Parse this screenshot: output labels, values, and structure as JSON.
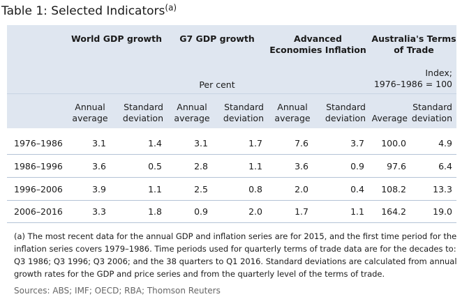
{
  "title": "Table 1: Selected Indicators",
  "title_note": "(a)",
  "groups": [
    {
      "label": "World GDP growth"
    },
    {
      "label": "G7 GDP growth"
    },
    {
      "label": "Advanced\nEconomies Inflation"
    },
    {
      "label": "Australia's Terms\nof Trade"
    }
  ],
  "units": {
    "per_cent": "Per cent",
    "index": "Index;\n1976–1986 = 100"
  },
  "subheaders": [
    "Annual\naverage",
    "Standard\ndeviation",
    "Annual\naverage",
    "Standard\ndeviation",
    "Annual\naverage",
    "Standard\ndeviation",
    "Average",
    "Standard\ndeviation"
  ],
  "rows": [
    {
      "period": "1976–1986",
      "values": [
        "3.1",
        "1.4",
        "3.1",
        "1.7",
        "7.6",
        "3.7",
        "100.0",
        "4.9"
      ]
    },
    {
      "period": "1986–1996",
      "values": [
        "3.6",
        "0.5",
        "2.8",
        "1.1",
        "3.6",
        "0.9",
        "97.6",
        "6.4"
      ]
    },
    {
      "period": "1996–2006",
      "values": [
        "3.9",
        "1.1",
        "2.5",
        "0.8",
        "2.0",
        "0.4",
        "108.2",
        "13.3"
      ]
    },
    {
      "period": "2006–2016",
      "values": [
        "3.3",
        "1.8",
        "0.9",
        "2.0",
        "1.7",
        "1.1",
        "164.2",
        "19.0"
      ]
    }
  ],
  "footnote": "(a) The most recent data for the annual GDP and inflation series are for 2015, and the first time period for the inflation series covers 1979–1986. Time periods used for quarterly terms of trade data are for the decades to: Q3 1986; Q3 1996; Q3 2006; and the 38 quarters to Q1 2016. Standard deviations are calculated from annual growth rates for the GDP and price series and from the quarterly level of the terms of trade.",
  "sources": "Sources: ABS; IMF; OECD; RBA; Thomson Reuters"
}
